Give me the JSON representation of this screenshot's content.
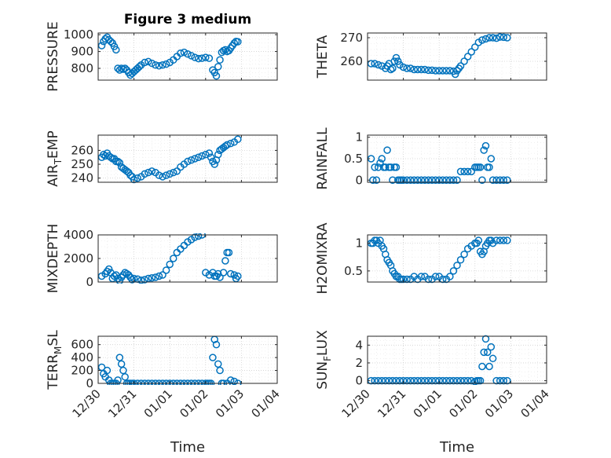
{
  "figure": {
    "title": "Figure 3 medium"
  },
  "shared_x": {
    "xlabel": "Time",
    "tick_labels": [
      "12/30",
      "12/31",
      "01/01",
      "01/02",
      "01/03",
      "01/04"
    ],
    "tick_values": [
      0,
      1,
      2,
      3,
      4,
      5
    ],
    "xlim": [
      0,
      5
    ]
  },
  "style": {
    "marker_color": "#0072bd",
    "grid": "dotted",
    "axes_color": "#262626"
  },
  "chart_data": [
    {
      "type": "scatter",
      "ylabel": "PRESSURE",
      "ylim": [
        730,
        1010
      ],
      "yticks": [
        800,
        900,
        1000
      ],
      "series": [
        {
          "x": [
            0.1,
            0.15,
            0.2,
            0.25,
            0.3,
            0.35,
            0.4,
            0.45,
            0.5,
            0.55,
            0.6,
            0.65,
            0.7,
            0.75,
            0.8,
            0.85,
            0.9,
            0.95,
            1.0,
            1.05,
            1.1,
            1.15,
            1.2,
            1.3,
            1.4,
            1.5,
            1.6,
            1.7,
            1.8,
            1.9,
            2.0,
            2.1,
            2.2,
            2.3,
            2.4,
            2.5,
            2.6,
            2.7,
            2.8,
            2.9,
            3.0,
            3.1,
            3.2,
            3.25,
            3.3,
            3.35,
            3.4,
            3.45,
            3.5,
            3.55,
            3.6,
            3.65,
            3.7,
            3.75,
            3.8,
            3.85,
            3.9
          ],
          "y": [
            935,
            960,
            975,
            985,
            970,
            960,
            950,
            930,
            910,
            800,
            790,
            800,
            795,
            800,
            790,
            775,
            760,
            770,
            780,
            790,
            800,
            810,
            820,
            835,
            840,
            830,
            820,
            815,
            820,
            825,
            835,
            850,
            870,
            890,
            895,
            885,
            875,
            865,
            858,
            860,
            865,
            860,
            790,
            775,
            755,
            810,
            850,
            895,
            905,
            910,
            900,
            905,
            920,
            935,
            950,
            960,
            958
          ]
        }
      ]
    },
    {
      "type": "scatter",
      "ylabel": "THETA",
      "ylim": [
        252,
        272
      ],
      "yticks": [
        260,
        270
      ],
      "series": [
        {
          "x": [
            0.1,
            0.2,
            0.3,
            0.4,
            0.5,
            0.55,
            0.6,
            0.65,
            0.7,
            0.75,
            0.8,
            0.85,
            0.9,
            1.0,
            1.1,
            1.2,
            1.3,
            1.4,
            1.5,
            1.6,
            1.7,
            1.8,
            1.9,
            2.0,
            2.1,
            2.2,
            2.3,
            2.4,
            2.45,
            2.5,
            2.55,
            2.6,
            2.7,
            2.8,
            2.9,
            3.0,
            3.1,
            3.2,
            3.3,
            3.4,
            3.5,
            3.6,
            3.7,
            3.8,
            3.9
          ],
          "y": [
            259,
            259,
            258.5,
            258,
            257,
            258,
            259,
            256.5,
            257,
            260,
            261.5,
            260,
            258.5,
            257.5,
            257,
            257,
            256.5,
            256.5,
            256.5,
            256.5,
            256.2,
            256.2,
            256,
            256,
            256,
            256,
            256,
            255.8,
            254.5,
            256,
            257,
            258,
            260,
            262,
            264,
            266,
            268,
            269,
            269.5,
            270,
            270,
            269.8,
            270.3,
            270.2,
            270
          ]
        }
      ]
    },
    {
      "type": "scatter",
      "ylabel": "AIR_TEMP",
      "ylim": [
        237,
        271
      ],
      "yticks": [
        240,
        250,
        260
      ],
      "series": [
        {
          "x": [
            0.1,
            0.15,
            0.2,
            0.25,
            0.3,
            0.35,
            0.4,
            0.45,
            0.5,
            0.55,
            0.6,
            0.65,
            0.7,
            0.75,
            0.8,
            0.85,
            0.9,
            0.95,
            1.0,
            1.1,
            1.2,
            1.3,
            1.4,
            1.5,
            1.6,
            1.7,
            1.8,
            1.9,
            2.0,
            2.1,
            2.2,
            2.3,
            2.4,
            2.5,
            2.6,
            2.7,
            2.8,
            2.9,
            3.0,
            3.1,
            3.15,
            3.2,
            3.25,
            3.3,
            3.35,
            3.4,
            3.45,
            3.5,
            3.55,
            3.6,
            3.7,
            3.8,
            3.9
          ],
          "y": [
            255,
            257,
            256,
            258,
            256,
            255,
            254,
            254,
            252,
            252,
            251,
            248,
            247,
            246,
            245,
            244,
            242,
            241,
            239,
            240,
            241,
            243,
            244,
            245,
            244,
            242,
            241,
            242,
            243,
            244,
            245,
            248,
            250,
            252,
            253,
            254,
            255,
            256,
            257,
            258,
            255,
            252,
            250,
            253,
            257,
            260,
            261,
            262,
            263,
            264,
            265,
            266,
            268
          ]
        }
      ]
    },
    {
      "type": "scatter",
      "ylabel": "RAINFALL",
      "ylim": [
        -0.05,
        1.05
      ],
      "yticks": [
        0,
        0.5,
        1
      ],
      "series": [
        {
          "x": [
            0.1,
            0.15,
            0.2,
            0.25,
            0.3,
            0.35,
            0.4,
            0.45,
            0.5,
            0.55,
            0.6,
            0.65,
            0.7,
            0.75,
            0.8,
            0.85,
            0.9,
            0.95,
            1.0,
            1.1,
            1.2,
            1.3,
            1.4,
            1.5,
            1.6,
            1.7,
            1.8,
            1.9,
            2.0,
            2.1,
            2.2,
            2.3,
            2.4,
            2.5,
            2.6,
            2.7,
            2.8,
            2.9,
            3.0,
            3.05,
            3.1,
            3.15,
            3.2,
            3.25,
            3.3,
            3.35,
            3.4,
            3.45,
            3.5,
            3.6,
            3.7,
            3.8,
            3.9
          ],
          "y": [
            0.5,
            0,
            0.3,
            0,
            0.3,
            0.4,
            0.5,
            0.3,
            0.3,
            0.7,
            0.3,
            0.3,
            0,
            0.3,
            0.3,
            0,
            0,
            0,
            0,
            0,
            0,
            0,
            0,
            0,
            0,
            0,
            0,
            0,
            0,
            0,
            0,
            0,
            0,
            0,
            0.2,
            0.2,
            0.2,
            0.2,
            0.3,
            0.3,
            0.3,
            0.3,
            0,
            0.7,
            0.8,
            0.3,
            0.3,
            0.5,
            0,
            0,
            0,
            0,
            0
          ]
        }
      ]
    },
    {
      "type": "scatter",
      "ylabel": "MIXDEPTH",
      "ylim": [
        0,
        4000
      ],
      "yticks": [
        0,
        2000,
        4000
      ],
      "series": [
        {
          "x": [
            0.1,
            0.2,
            0.25,
            0.3,
            0.35,
            0.4,
            0.45,
            0.5,
            0.55,
            0.6,
            0.65,
            0.7,
            0.75,
            0.8,
            0.85,
            0.9,
            0.95,
            1.0,
            1.1,
            1.2,
            1.3,
            1.4,
            1.5,
            1.6,
            1.7,
            1.8,
            1.9,
            2.0,
            2.1,
            2.2,
            2.3,
            2.4,
            2.5,
            2.6,
            2.7,
            2.8,
            2.9,
            3.0,
            3.1,
            3.2,
            3.25,
            3.3,
            3.35,
            3.4,
            3.5,
            3.55,
            3.6,
            3.65,
            3.7,
            3.8,
            3.85,
            3.9
          ],
          "y": [
            500,
            700,
            900,
            1100,
            800,
            300,
            500,
            600,
            300,
            100,
            400,
            600,
            800,
            700,
            600,
            400,
            200,
            300,
            250,
            150,
            200,
            300,
            350,
            400,
            500,
            600,
            1000,
            1500,
            2000,
            2500,
            2800,
            3100,
            3400,
            3600,
            3800,
            3900,
            4000,
            800,
            600,
            800,
            500,
            500,
            700,
            400,
            800,
            1800,
            2500,
            2500,
            700,
            600,
            300,
            500
          ]
        }
      ]
    },
    {
      "type": "scatter",
      "ylabel": "H2OMIXRA",
      "ylim": [
        0.3,
        1.15
      ],
      "yticks": [
        0.5,
        1
      ],
      "series": [
        {
          "x": [
            0.1,
            0.15,
            0.2,
            0.25,
            0.3,
            0.35,
            0.4,
            0.45,
            0.5,
            0.55,
            0.6,
            0.65,
            0.7,
            0.75,
            0.8,
            0.85,
            0.9,
            0.95,
            1.0,
            1.1,
            1.2,
            1.3,
            1.4,
            1.5,
            1.6,
            1.7,
            1.8,
            1.9,
            2.0,
            2.1,
            2.2,
            2.3,
            2.4,
            2.5,
            2.6,
            2.7,
            2.8,
            2.9,
            3.0,
            3.05,
            3.1,
            3.15,
            3.2,
            3.25,
            3.3,
            3.35,
            3.4,
            3.45,
            3.5,
            3.6,
            3.7,
            3.8,
            3.9
          ],
          "y": [
            1.0,
            1.0,
            1.05,
            1.05,
            1.0,
            1.05,
            0.95,
            0.9,
            0.8,
            0.7,
            0.65,
            0.6,
            0.5,
            0.45,
            0.4,
            0.4,
            0.35,
            0.35,
            0.35,
            0.35,
            0.35,
            0.4,
            0.35,
            0.4,
            0.4,
            0.35,
            0.35,
            0.4,
            0.4,
            0.35,
            0.35,
            0.4,
            0.5,
            0.6,
            0.7,
            0.8,
            0.9,
            0.95,
            1.0,
            1.0,
            1.05,
            0.85,
            0.8,
            0.85,
            0.95,
            1.0,
            1.05,
            1.05,
            1.0,
            1.05,
            1.05,
            1.05,
            1.05
          ]
        }
      ]
    },
    {
      "type": "scatter",
      "ylabel": "TERR_MSL",
      "ylim": [
        0,
        730
      ],
      "yticks": [
        0,
        200,
        400,
        600
      ],
      "series": [
        {
          "x": [
            0.1,
            0.15,
            0.2,
            0.25,
            0.3,
            0.35,
            0.4,
            0.45,
            0.5,
            0.55,
            0.6,
            0.65,
            0.7,
            0.75,
            0.8,
            0.85,
            0.9,
            0.95,
            1.0,
            1.1,
            1.2,
            1.3,
            1.4,
            1.5,
            1.6,
            1.7,
            1.8,
            1.9,
            2.0,
            2.1,
            2.2,
            2.3,
            2.4,
            2.5,
            2.6,
            2.7,
            2.8,
            2.9,
            3.0,
            3.05,
            3.1,
            3.15,
            3.2,
            3.25,
            3.3,
            3.35,
            3.4,
            3.45,
            3.5,
            3.6,
            3.7,
            3.8,
            3.9
          ],
          "y": [
            250,
            150,
            100,
            200,
            50,
            0,
            0,
            0,
            0,
            50,
            400,
            300,
            200,
            100,
            0,
            0,
            0,
            0,
            0,
            0,
            0,
            0,
            0,
            0,
            0,
            0,
            0,
            0,
            0,
            0,
            0,
            0,
            0,
            0,
            0,
            0,
            0,
            0,
            0,
            0,
            0,
            0,
            400,
            680,
            600,
            300,
            200,
            0,
            0,
            0,
            50,
            30,
            0
          ]
        }
      ]
    },
    {
      "type": "scatter",
      "ylabel": "SUN_FLUX",
      "ylim": [
        -0.3,
        5
      ],
      "yticks": [
        0,
        2,
        4
      ],
      "series": [
        {
          "x": [
            0.1,
            0.2,
            0.3,
            0.4,
            0.5,
            0.6,
            0.7,
            0.8,
            0.9,
            1.0,
            1.1,
            1.2,
            1.3,
            1.4,
            1.5,
            1.6,
            1.7,
            1.8,
            1.9,
            2.0,
            2.1,
            2.2,
            2.3,
            2.4,
            2.5,
            2.6,
            2.7,
            2.8,
            2.9,
            3.0,
            3.05,
            3.1,
            3.15,
            3.2,
            3.25,
            3.3,
            3.35,
            3.4,
            3.45,
            3.5,
            3.6,
            3.7,
            3.8,
            3.9
          ],
          "y": [
            0,
            0,
            0,
            0,
            0,
            0,
            0,
            0,
            0,
            0,
            0,
            0,
            0,
            0,
            0,
            0,
            0,
            0,
            0,
            0,
            0,
            0,
            0,
            0,
            0,
            0,
            0,
            0,
            0,
            -0.1,
            0,
            0,
            0,
            1.6,
            3.2,
            4.7,
            3.2,
            1.6,
            3.8,
            2.5,
            0,
            0,
            0,
            0
          ]
        }
      ]
    }
  ]
}
